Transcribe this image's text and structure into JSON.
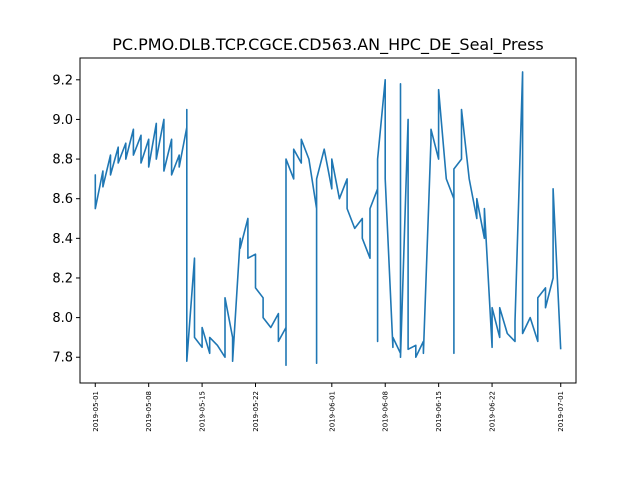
{
  "chart_data": {
    "type": "line",
    "title": "PC.PMO.DLB.TCP.CGCE.CD563.AN_HPC_DE_Seal_Press",
    "xlabel": "",
    "ylabel": "",
    "grid": false,
    "xlim": [
      "2019-04-29",
      "2019-07-03"
    ],
    "ylim": [
      7.67,
      9.31
    ],
    "xticks": [
      "2019-05-01",
      "2019-05-08",
      "2019-05-15",
      "2019-05-22",
      "2019-06-01",
      "2019-06-08",
      "2019-06-15",
      "2019-06-22",
      "2019-07-01"
    ],
    "yticks": [
      "7.8",
      "8.0",
      "8.2",
      "8.4",
      "8.6",
      "8.8",
      "9.0",
      "9.2"
    ],
    "series": [
      {
        "color": "#1f77b4",
        "points": [
          [
            "2019-05-01",
            8.7
          ],
          [
            "2019-05-01",
            8.72
          ],
          [
            "2019-05-01",
            8.55
          ],
          [
            "2019-05-02",
            8.74
          ],
          [
            "2019-05-02",
            8.66
          ],
          [
            "2019-05-03",
            8.82
          ],
          [
            "2019-05-03",
            8.72
          ],
          [
            "2019-05-04",
            8.86
          ],
          [
            "2019-05-04",
            8.78
          ],
          [
            "2019-05-05",
            8.88
          ],
          [
            "2019-05-05",
            8.8
          ],
          [
            "2019-05-06",
            8.95
          ],
          [
            "2019-05-06",
            8.82
          ],
          [
            "2019-05-07",
            8.92
          ],
          [
            "2019-05-07",
            8.78
          ],
          [
            "2019-05-08",
            8.9
          ],
          [
            "2019-05-08",
            8.76
          ],
          [
            "2019-05-09",
            8.98
          ],
          [
            "2019-05-09",
            8.8
          ],
          [
            "2019-05-10",
            9.0
          ],
          [
            "2019-05-10",
            8.74
          ],
          [
            "2019-05-11",
            8.9
          ],
          [
            "2019-05-11",
            8.72
          ],
          [
            "2019-05-12",
            8.82
          ],
          [
            "2019-05-12",
            8.76
          ],
          [
            "2019-05-13",
            8.96
          ],
          [
            "2019-05-13",
            9.05
          ],
          [
            "2019-05-13",
            7.78
          ],
          [
            "2019-05-14",
            8.3
          ],
          [
            "2019-05-14",
            7.9
          ],
          [
            "2019-05-15",
            7.85
          ],
          [
            "2019-05-15",
            7.95
          ],
          [
            "2019-05-16",
            7.82
          ],
          [
            "2019-05-16",
            7.9
          ],
          [
            "2019-05-17",
            7.86
          ],
          [
            "2019-05-18",
            7.8
          ],
          [
            "2019-05-18",
            8.1
          ],
          [
            "2019-05-19",
            7.9
          ],
          [
            "2019-05-19",
            7.78
          ],
          [
            "2019-05-20",
            8.4
          ],
          [
            "2019-05-20",
            8.35
          ],
          [
            "2019-05-21",
            8.5
          ],
          [
            "2019-05-21",
            8.3
          ],
          [
            "2019-05-22",
            8.32
          ],
          [
            "2019-05-22",
            8.15
          ],
          [
            "2019-05-23",
            8.1
          ],
          [
            "2019-05-23",
            8.0
          ],
          [
            "2019-05-24",
            7.95
          ],
          [
            "2019-05-25",
            8.02
          ],
          [
            "2019-05-25",
            7.88
          ],
          [
            "2019-05-26",
            7.95
          ],
          [
            "2019-05-26",
            7.76
          ],
          [
            "2019-05-26",
            8.8
          ],
          [
            "2019-05-27",
            8.7
          ],
          [
            "2019-05-27",
            8.85
          ],
          [
            "2019-05-28",
            8.78
          ],
          [
            "2019-05-28",
            8.9
          ],
          [
            "2019-05-29",
            8.8
          ],
          [
            "2019-05-30",
            8.55
          ],
          [
            "2019-05-30",
            7.77
          ],
          [
            "2019-05-30",
            8.7
          ],
          [
            "2019-05-31",
            8.85
          ],
          [
            "2019-06-01",
            8.65
          ],
          [
            "2019-06-01",
            8.8
          ],
          [
            "2019-06-02",
            8.6
          ],
          [
            "2019-06-03",
            8.7
          ],
          [
            "2019-06-03",
            8.55
          ],
          [
            "2019-06-04",
            8.45
          ],
          [
            "2019-06-05",
            8.5
          ],
          [
            "2019-06-05",
            8.4
          ],
          [
            "2019-06-06",
            8.3
          ],
          [
            "2019-06-06",
            8.55
          ],
          [
            "2019-06-07",
            8.65
          ],
          [
            "2019-06-07",
            7.88
          ],
          [
            "2019-06-07",
            8.8
          ],
          [
            "2019-06-08",
            9.2
          ],
          [
            "2019-06-08",
            8.7
          ],
          [
            "2019-06-09",
            7.85
          ],
          [
            "2019-06-09",
            7.9
          ],
          [
            "2019-06-10",
            7.82
          ],
          [
            "2019-06-10",
            9.18
          ],
          [
            "2019-06-10",
            7.8
          ],
          [
            "2019-06-11",
            9.0
          ],
          [
            "2019-06-11",
            7.84
          ],
          [
            "2019-06-12",
            7.86
          ],
          [
            "2019-06-12",
            7.8
          ],
          [
            "2019-06-13",
            7.88
          ],
          [
            "2019-06-13",
            7.82
          ],
          [
            "2019-06-14",
            8.9
          ],
          [
            "2019-06-14",
            8.95
          ],
          [
            "2019-06-15",
            8.8
          ],
          [
            "2019-06-15",
            9.15
          ],
          [
            "2019-06-16",
            8.7
          ],
          [
            "2019-06-17",
            8.6
          ],
          [
            "2019-06-17",
            7.82
          ],
          [
            "2019-06-17",
            8.75
          ],
          [
            "2019-06-18",
            8.8
          ],
          [
            "2019-06-18",
            9.05
          ],
          [
            "2019-06-19",
            8.7
          ],
          [
            "2019-06-20",
            8.5
          ],
          [
            "2019-06-20",
            8.6
          ],
          [
            "2019-06-21",
            8.4
          ],
          [
            "2019-06-21",
            8.55
          ],
          [
            "2019-06-22",
            7.85
          ],
          [
            "2019-06-22",
            8.05
          ],
          [
            "2019-06-23",
            7.9
          ],
          [
            "2019-06-23",
            8.05
          ],
          [
            "2019-06-24",
            7.92
          ],
          [
            "2019-06-25",
            7.88
          ],
          [
            "2019-06-25",
            7.98
          ],
          [
            "2019-06-26",
            9.24
          ],
          [
            "2019-06-26",
            7.92
          ],
          [
            "2019-06-27",
            8.0
          ],
          [
            "2019-06-28",
            7.88
          ],
          [
            "2019-06-28",
            8.1
          ],
          [
            "2019-06-29",
            8.15
          ],
          [
            "2019-06-29",
            8.05
          ],
          [
            "2019-06-30",
            8.2
          ],
          [
            "2019-06-30",
            8.65
          ],
          [
            "2019-07-01",
            7.84
          ]
        ]
      }
    ]
  }
}
